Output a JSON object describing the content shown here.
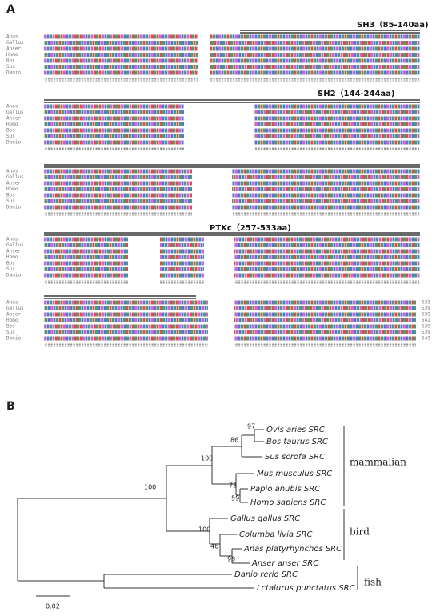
{
  "panel_a": {
    "label": "A",
    "domains": [
      "SH3（85-140aa)",
      "SH2（144-244aa)",
      "PTKc（257-533aa)"
    ],
    "species": [
      "Anas",
      "Gallus",
      "Anser",
      "Homo",
      "Bos",
      "Sus",
      "Danio"
    ],
    "lengths": [
      533,
      539,
      539,
      542,
      539,
      539,
      549
    ]
  },
  "panel_b": {
    "label": "B",
    "leaves": [
      "Ovis aries SRC",
      "Bos taurus SRC",
      "Sus scrofa SRC",
      "Mus musculus SRC",
      "Papio anubis SRC",
      "Homo sapiens SRC",
      "Gallus gallus SRC",
      "Columba livia SRC",
      "Anas platyrhynchos SRC",
      "Anser anser SRC",
      "Danio rerio SRC",
      "Lctalurus punctatus SRC"
    ],
    "bootstrap": [
      "97",
      "86",
      "100",
      "73",
      "59",
      "100",
      "46",
      "98",
      "100"
    ],
    "clades": [
      "mammalian",
      "bird",
      "fish"
    ],
    "scale": "0.02"
  }
}
